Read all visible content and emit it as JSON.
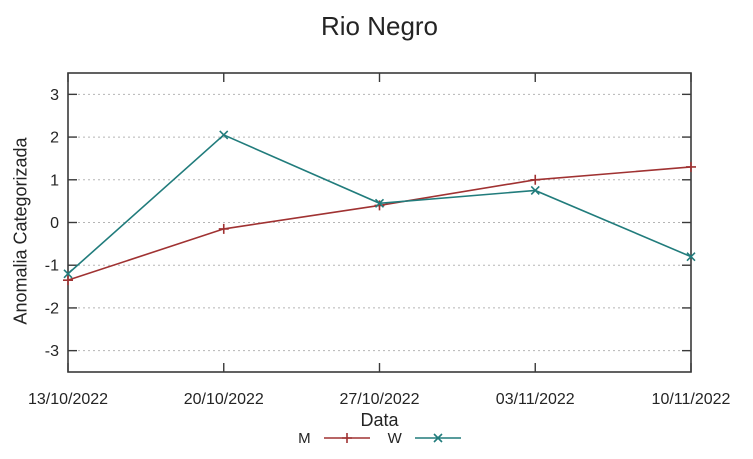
{
  "chart_data": {
    "type": "line",
    "title": "Rio Negro",
    "xlabel": "Data",
    "ylabel": "Anomalia Categorizada",
    "categories": [
      "13/10/2022",
      "20/10/2022",
      "27/10/2022",
      "03/11/2022",
      "10/11/2022"
    ],
    "yticks": [
      3,
      2,
      1,
      0,
      -1,
      -2,
      -3
    ],
    "ylim": [
      -3.5,
      3.5
    ],
    "grid": "horizontal-dotted",
    "legend_position": "below-center",
    "background_color": "#ffffff",
    "series": [
      {
        "name": "M",
        "color": "#a03232",
        "marker": "plus",
        "values": [
          -1.35,
          -0.15,
          0.4,
          1.0,
          1.3
        ]
      },
      {
        "name": "W",
        "color": "#217c7c",
        "marker": "cross",
        "values": [
          -1.2,
          2.05,
          0.45,
          0.75,
          -0.8
        ]
      }
    ]
  }
}
